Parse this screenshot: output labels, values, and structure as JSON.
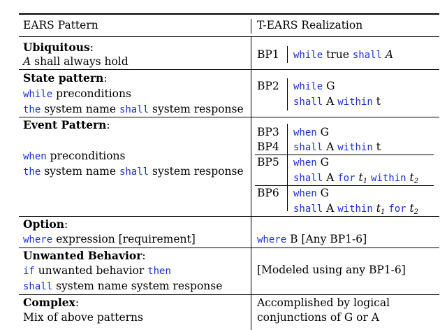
{
  "header": {
    "col1": "EARS Pattern",
    "col2": "T-EARS Realization"
  },
  "rows": {
    "ubiquitous": {
      "title": "Ubiquitous",
      "colon": ":",
      "line1_var": "A",
      "line1_rest": " shall always hold",
      "bp": "BP1",
      "r_kw1": "while",
      "r_t1": " true ",
      "r_kw2": "shall",
      "r_t2": " ",
      "r_var": "A"
    },
    "state": {
      "title": "State pattern",
      "colon": ":",
      "l1_kw": "while",
      "l1_t": " preconditions",
      "l2_kw1": "the",
      "l2_t1": " system name ",
      "l2_kw2": "shall",
      "l2_t2": " system response",
      "bp": "BP2",
      "r1_kw": "while",
      "r1_t": " G",
      "r2_kw1": "shall",
      "r2_t1": " A ",
      "r2_kw2": "within",
      "r2_t2": " t"
    },
    "event": {
      "title": "Event Pattern",
      "colon": ":",
      "l1_kw": "when",
      "l1_t": " preconditions",
      "l2_kw1": "the",
      "l2_t1": " system name ",
      "l2_kw2": "shall",
      "l2_t2": " system response",
      "bp3": "BP3",
      "bp3_kw": "when",
      "bp3_t": " G",
      "bp4": "BP4",
      "bp4_kw1": "shall",
      "bp4_t1": " A ",
      "bp4_kw2": "within",
      "bp4_t2": " t",
      "bp5": "BP5",
      "bp5_r1_kw": "when",
      "bp5_r1_t": " G",
      "bp5_r2_kw1": "shall",
      "bp5_r2_t1": " A ",
      "bp5_r2_kw2": "for",
      "bp5_r2_t2": " ",
      "bp5_var1": "t",
      "bp5_sub1": "1",
      "bp5_r2_t3": " ",
      "bp5_r2_kw3": "within",
      "bp5_r2_t4": " ",
      "bp5_var2": "t",
      "bp5_sub2": "2",
      "bp6": "BP6",
      "bp6_r1_kw": "when",
      "bp6_r1_t": " G",
      "bp6_r2_kw1": "shall",
      "bp6_r2_t1": " A ",
      "bp6_r2_kw2": "within",
      "bp6_r2_t2": " ",
      "bp6_var1": "t",
      "bp6_sub1": "1",
      "bp6_r2_t3": " ",
      "bp6_r2_kw3": "for",
      "bp6_r2_t4": " ",
      "bp6_var2": "t",
      "bp6_sub2": "2"
    },
    "option": {
      "title": "Option",
      "colon": ":",
      "l1_kw": "where",
      "l1_t": " expression [requirement]",
      "r_kw": "where",
      "r_t": " B [Any BP1-6]"
    },
    "unwanted": {
      "title": "Unwanted Behavior",
      "colon": ":",
      "l1_kw1": "if",
      "l1_t": " unwanted behavior ",
      "l1_kw2": "then",
      "l2_kw": "shall",
      "l2_t": " system name system response",
      "r": "[Modeled using any BP1-6]"
    },
    "complex": {
      "title": "Complex",
      "colon": ":",
      "l1": "Mix of above patterns",
      "r1": "Accomplished by logical",
      "r2": "conjunctions of G or A"
    }
  }
}
